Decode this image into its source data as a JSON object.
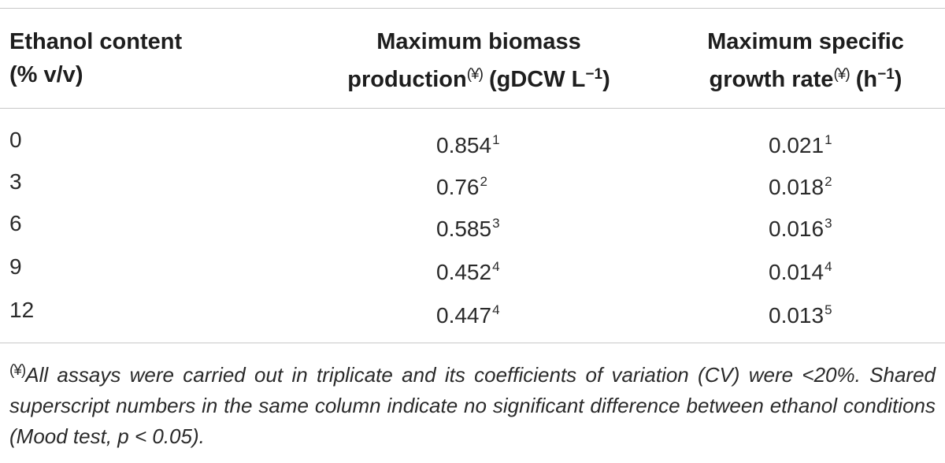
{
  "table": {
    "headers": {
      "col1": {
        "line1": "Ethanol content",
        "line2": "(% v/v)"
      },
      "col2": {
        "line1": "Maximum biomass",
        "line2_pre": "production",
        "note_mark": "(¥)",
        "line2_post": " (gDCW L",
        "unit_sup": "−1",
        "line2_end": ")"
      },
      "col3": {
        "line1": "Maximum specific",
        "line2_pre": "growth rate",
        "note_mark": "(¥)",
        "line2_post": " (h",
        "unit_sup": "−1",
        "line2_end": ")"
      }
    },
    "rows": [
      {
        "ethanol": "0",
        "biomass": "0.854",
        "biomass_sup": "1",
        "growth": "0.021",
        "growth_sup": "1"
      },
      {
        "ethanol": "3",
        "biomass": "0.76",
        "biomass_sup": "2",
        "growth": "0.018",
        "growth_sup": "2"
      },
      {
        "ethanol": "6",
        "biomass": "0.585",
        "biomass_sup": "3",
        "growth": "0.016",
        "growth_sup": "3"
      },
      {
        "ethanol": "9",
        "biomass": "0.452",
        "biomass_sup": "4",
        "growth": "0.014",
        "growth_sup": "4"
      },
      {
        "ethanol": "12",
        "biomass": "0.447",
        "biomass_sup": "4",
        "growth": "0.013",
        "growth_sup": "5"
      }
    ],
    "footnote": {
      "mark": "(¥)",
      "text": "All assays were carried out in triplicate and its coefficients of variation (CV) were <20%. Shared superscript numbers in the same column indicate no significant difference between ethanol conditions (Mood test, p < 0.05)."
    }
  }
}
